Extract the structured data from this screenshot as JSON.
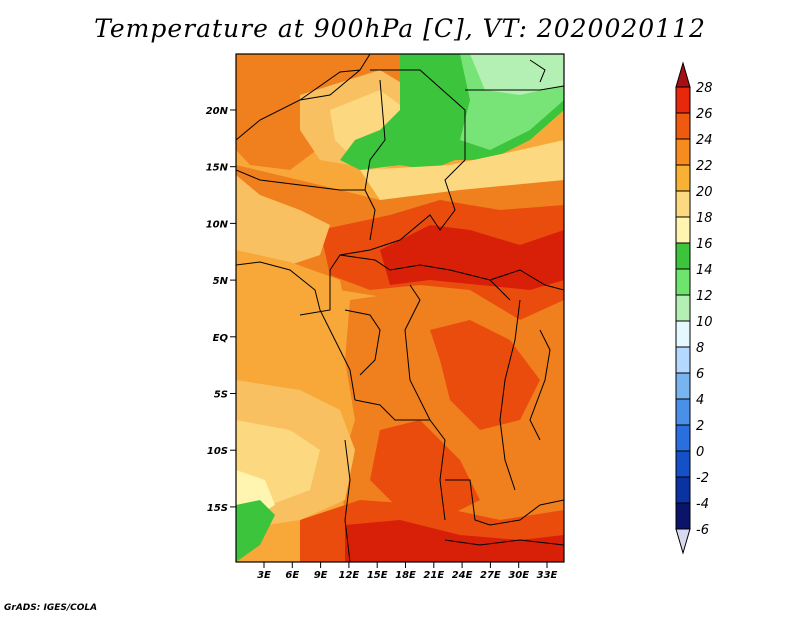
{
  "title": "Temperature at 900hPa [C], VT: 2020020112",
  "credit": "GrADS: IGES/COLA",
  "map": {
    "lat_labels": [
      "20N",
      "15N",
      "10N",
      "5N",
      "EQ",
      "5S",
      "10S",
      "15S"
    ],
    "lon_labels": [
      "3E",
      "6E",
      "9E",
      "12E",
      "15E",
      "18E",
      "21E",
      "24E",
      "27E",
      "30E",
      "33E"
    ]
  },
  "colorbar": {
    "labels": [
      "28",
      "26",
      "24",
      "22",
      "20",
      "18",
      "16",
      "14",
      "12",
      "10",
      "8",
      "6",
      "4",
      "2",
      "0",
      "-2",
      "-4",
      "-6"
    ],
    "colors": [
      "#a50f15",
      "#e8280c",
      "#f05a10",
      "#f68c1e",
      "#f8b035",
      "#fcd880",
      "#fff4b0",
      "#3cc43c",
      "#6ee46e",
      "#b4f0b4",
      "#e6f8ff",
      "#b4d8ff",
      "#78b4f0",
      "#4a90e8",
      "#2a6ee0",
      "#1450c8",
      "#0a32a0",
      "#0a1468"
    ]
  },
  "field_colors": {
    "t16": "#fff4b0",
    "t18": "#fcd880",
    "t20": "#f8c060",
    "t22": "#f8a838",
    "t24": "#f07f1e",
    "t26": "#ea4c0e",
    "t28": "#d82008",
    "cool1": "#3cc43c",
    "cool2": "#78e478",
    "cool3": "#b4f0b4"
  }
}
